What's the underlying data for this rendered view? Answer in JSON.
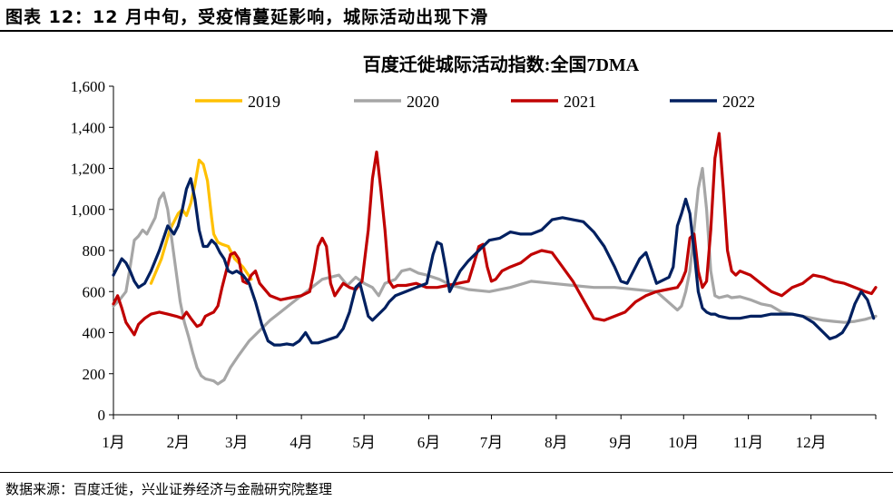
{
  "header": {
    "title": "图表 12：12 月中旬，受疫情蔓延影响，城际活动出现下滑"
  },
  "footer": {
    "source": "数据来源：百度迁徙，兴业证券经济与金融研究院整理"
  },
  "chart_data": {
    "type": "line",
    "title": "百度迁徙城际活动指数:全国7DMA",
    "xlabel": "",
    "ylabel": "",
    "ylim": [
      0,
      1600
    ],
    "yticks": [
      0,
      200,
      400,
      600,
      800,
      1000,
      1200,
      1400,
      1600
    ],
    "ytick_labels": [
      "0",
      "200",
      "400",
      "600",
      "800",
      "1,000",
      "1,200",
      "1,400",
      "1,600"
    ],
    "xlim": [
      0,
      365
    ],
    "x_tick_positions": [
      0,
      31,
      59,
      90,
      120,
      151,
      181,
      212,
      243,
      273,
      304,
      334,
      365
    ],
    "x_label_positions": [
      0,
      31,
      59,
      90,
      120,
      151,
      181,
      212,
      243,
      273,
      304,
      334
    ],
    "x_tick_labels": [
      "1月",
      "2月",
      "3月",
      "4月",
      "5月",
      "6月",
      "7月",
      "8月",
      "9月",
      "10月",
      "11月",
      "12月"
    ],
    "grid": false,
    "legend_position": "top",
    "series": [
      {
        "name": "2019",
        "color": "#FFC000",
        "x": [
          18,
          23,
          27,
          31,
          33,
          35,
          37,
          39,
          41,
          43,
          45,
          46,
          47,
          48,
          50,
          52,
          55,
          58,
          62,
          66
        ],
        "values": [
          640,
          760,
          900,
          980,
          1000,
          970,
          1030,
          1120,
          1240,
          1220,
          1140,
          1050,
          960,
          880,
          840,
          830,
          820,
          760,
          720,
          660
        ]
      },
      {
        "name": "2020",
        "color": "#A6A6A6",
        "x": [
          0,
          3,
          6,
          8,
          10,
          12,
          14,
          16,
          18,
          20,
          22,
          24,
          26,
          28,
          30,
          32,
          34,
          36,
          38,
          40,
          42,
          44,
          46,
          48,
          50,
          53,
          56,
          60,
          65,
          70,
          75,
          80,
          85,
          90,
          95,
          100,
          104,
          108,
          112,
          116,
          120,
          124,
          127,
          130,
          135,
          138,
          142,
          146,
          150,
          156,
          162,
          170,
          180,
          190,
          200,
          210,
          220,
          230,
          240,
          250,
          260,
          270,
          272,
          274,
          276,
          278,
          280,
          282,
          284,
          286,
          288,
          290,
          292,
          294,
          296,
          300,
          305,
          310,
          315,
          320,
          325,
          330,
          335,
          340,
          345,
          350,
          355,
          360,
          365
        ],
        "values": [
          530,
          560,
          600,
          720,
          850,
          870,
          900,
          880,
          920,
          960,
          1050,
          1080,
          1000,
          850,
          700,
          550,
          450,
          380,
          300,
          230,
          190,
          175,
          170,
          165,
          150,
          170,
          230,
          290,
          360,
          410,
          460,
          500,
          540,
          580,
          620,
          660,
          670,
          680,
          630,
          670,
          640,
          620,
          580,
          640,
          660,
          700,
          710,
          690,
          680,
          660,
          630,
          610,
          600,
          620,
          650,
          640,
          630,
          620,
          620,
          610,
          600,
          510,
          530,
          600,
          700,
          900,
          1100,
          1200,
          1000,
          700,
          580,
          570,
          575,
          580,
          570,
          575,
          560,
          540,
          530,
          500,
          490,
          480,
          470,
          460,
          455,
          450,
          455,
          465,
          480
        ]
      },
      {
        "name": "2021",
        "color": "#C00000",
        "x": [
          0,
          2,
          4,
          6,
          8,
          10,
          12,
          15,
          18,
          22,
          26,
          30,
          33,
          35,
          37,
          40,
          42,
          44,
          46,
          48,
          50,
          52,
          54,
          56,
          58,
          60,
          62,
          64,
          66,
          68,
          70,
          75,
          80,
          85,
          90,
          94,
          96,
          98,
          100,
          102,
          104,
          106,
          108,
          110,
          113,
          116,
          119,
          122,
          124,
          126,
          128,
          130,
          132,
          134,
          136,
          140,
          145,
          150,
          155,
          160,
          165,
          170,
          173,
          175,
          177,
          179,
          181,
          183,
          186,
          190,
          195,
          200,
          205,
          210,
          215,
          220,
          225,
          230,
          235,
          240,
          245,
          250,
          255,
          260,
          265,
          270,
          272,
          274,
          276,
          278,
          280,
          282,
          284,
          286,
          288,
          290,
          292,
          294,
          296,
          298,
          300,
          305,
          310,
          315,
          320,
          325,
          330,
          335,
          340,
          345,
          350,
          355,
          360,
          363,
          365
        ],
        "values": [
          540,
          580,
          520,
          450,
          420,
          390,
          440,
          470,
          490,
          500,
          490,
          480,
          470,
          500,
          470,
          430,
          440,
          480,
          490,
          500,
          530,
          620,
          700,
          780,
          790,
          760,
          650,
          640,
          680,
          700,
          640,
          580,
          560,
          570,
          580,
          600,
          700,
          820,
          860,
          820,
          640,
          580,
          610,
          640,
          620,
          610,
          650,
          900,
          1150,
          1280,
          1100,
          900,
          650,
          620,
          630,
          630,
          640,
          620,
          620,
          630,
          640,
          650,
          750,
          820,
          830,
          720,
          650,
          660,
          700,
          720,
          740,
          780,
          800,
          790,
          720,
          650,
          560,
          470,
          460,
          480,
          500,
          550,
          580,
          600,
          610,
          620,
          650,
          700,
          860,
          880,
          700,
          620,
          650,
          900,
          1250,
          1370,
          1100,
          800,
          700,
          680,
          700,
          680,
          640,
          600,
          580,
          620,
          640,
          680,
          670,
          650,
          640,
          620,
          600,
          590,
          620
        ]
      },
      {
        "name": "2022",
        "color": "#002060",
        "x": [
          0,
          2,
          4,
          6,
          8,
          10,
          12,
          15,
          18,
          22,
          26,
          29,
          31,
          33,
          35,
          37,
          39,
          41,
          43,
          45,
          47,
          49,
          51,
          53,
          55,
          57,
          59,
          62,
          65,
          68,
          71,
          74,
          77,
          80,
          83,
          86,
          89,
          92,
          95,
          98,
          101,
          104,
          107,
          110,
          113,
          116,
          118,
          120,
          122,
          124,
          126,
          128,
          130,
          132,
          135,
          140,
          145,
          150,
          153,
          155,
          157,
          159,
          161,
          163,
          166,
          170,
          175,
          180,
          185,
          190,
          195,
          200,
          205,
          210,
          215,
          220,
          225,
          230,
          235,
          240,
          243,
          246,
          249,
          252,
          255,
          258,
          260,
          262,
          264,
          266,
          268,
          270,
          272,
          274,
          276,
          278,
          280,
          282,
          284,
          286,
          288,
          290,
          295,
          300,
          305,
          310,
          315,
          320,
          325,
          330,
          335,
          340,
          343,
          346,
          349,
          352,
          355,
          358,
          361,
          364
        ],
        "values": [
          680,
          720,
          760,
          740,
          700,
          650,
          620,
          640,
          700,
          800,
          920,
          880,
          920,
          1000,
          1100,
          1150,
          1050,
          900,
          820,
          820,
          850,
          830,
          790,
          760,
          700,
          690,
          700,
          680,
          640,
          550,
          440,
          360,
          340,
          340,
          345,
          340,
          360,
          400,
          350,
          350,
          360,
          370,
          380,
          420,
          500,
          620,
          640,
          560,
          480,
          460,
          480,
          500,
          520,
          550,
          580,
          600,
          620,
          640,
          780,
          840,
          830,
          720,
          600,
          640,
          700,
          750,
          800,
          850,
          860,
          890,
          880,
          880,
          900,
          950,
          960,
          950,
          940,
          890,
          820,
          720,
          650,
          640,
          700,
          760,
          790,
          700,
          640,
          650,
          660,
          670,
          720,
          920,
          980,
          1050,
          980,
          800,
          600,
          520,
          500,
          490,
          490,
          480,
          470,
          470,
          480,
          480,
          490,
          490,
          490,
          480,
          450,
          400,
          370,
          380,
          400,
          450,
          540,
          600,
          560,
          470
        ]
      }
    ]
  }
}
